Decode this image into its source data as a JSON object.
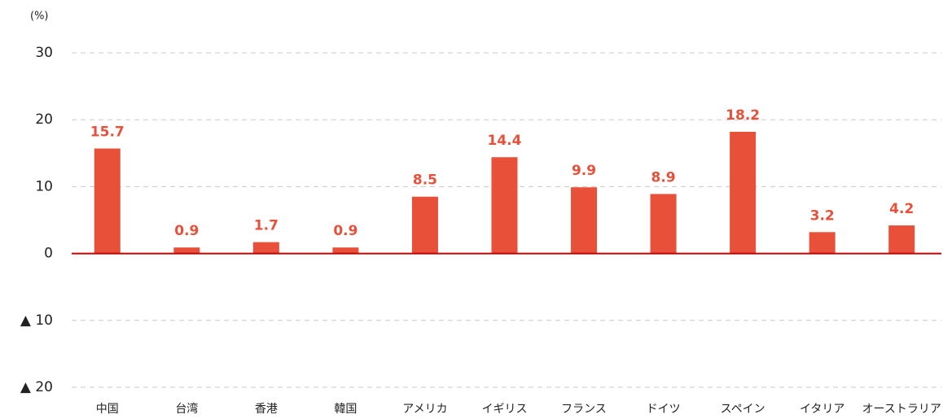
{
  "chart_data": {
    "type": "bar",
    "unit_label": "(%)",
    "categories": [
      "中国",
      "台湾",
      "香港",
      "韓国",
      "アメリカ",
      "イギリス",
      "フランス",
      "ドイツ",
      "スペイン",
      "イタリア",
      "オーストラリア"
    ],
    "values": [
      15.7,
      0.9,
      1.7,
      0.9,
      8.5,
      14.4,
      9.9,
      8.9,
      18.2,
      3.2,
      4.2
    ],
    "color": "#e8503a",
    "zero_line_color": "#c00000",
    "ylim": [
      -20,
      30
    ],
    "yticks": [
      30,
      20,
      10,
      0,
      {
        "value": -10,
        "label": "▲ 10"
      },
      {
        "value": -20,
        "label": "▲ 20"
      }
    ],
    "grid": true
  }
}
